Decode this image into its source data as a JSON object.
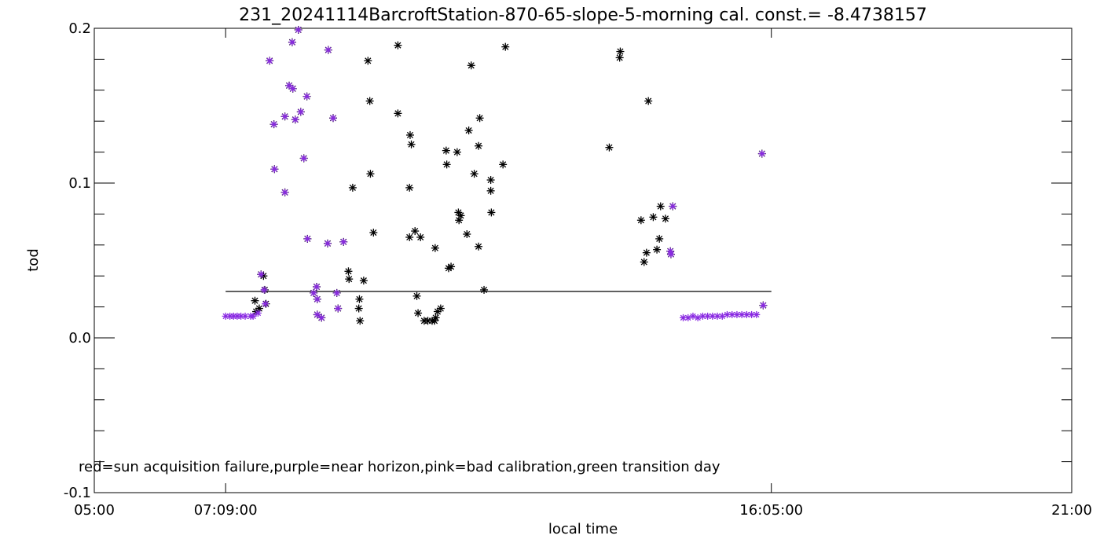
{
  "chart_data": {
    "type": "scatter",
    "title": "231_20241114BarcroftStation-870-65-slope-5-morning cal. const.= -8.4738157",
    "xlabel": "local time",
    "ylabel": "tod",
    "xlim_hours": [
      5,
      21
    ],
    "ylim": [
      -0.1,
      0.2
    ],
    "x_tick_labels": [
      {
        "hour": 5,
        "label": "05:00"
      },
      {
        "hour": 7.15,
        "label": "07:09:00"
      },
      {
        "hour": 16.0833,
        "label": "16:05:00"
      },
      {
        "hour": 21,
        "label": "21:00"
      }
    ],
    "y_tick_labels": [
      {
        "value": -0.1,
        "label": "-0.1"
      },
      {
        "value": 0.0,
        "label": "0.0"
      },
      {
        "value": 0.1,
        "label": "0.1"
      },
      {
        "value": 0.2,
        "label": "0.2"
      }
    ],
    "threshold_line": {
      "y": 0.03,
      "x_from_hours": 7.15,
      "x_to_hours": 16.0833
    },
    "annotation": "red=sun acquisition failure,purple=near horizon,pink=bad calibration,green transition day",
    "colors": {
      "normal": "#000000",
      "near_horizon": "#8a2be2",
      "axes": "#000000"
    },
    "series": [
      {
        "marker": "asterisk",
        "points": [
          [
            7.73,
            0.041
          ],
          [
            7.77,
            0.04
          ],
          [
            7.79,
            0.031
          ],
          [
            7.81,
            0.022
          ],
          [
            7.7,
            0.019
          ],
          [
            7.65,
            0.017
          ],
          [
            7.63,
            0.024
          ],
          [
            7.87,
            0.179
          ],
          [
            7.94,
            0.138
          ],
          [
            7.95,
            0.109
          ],
          [
            8.12,
            0.094
          ],
          [
            8.12,
            0.143
          ],
          [
            8.19,
            0.163
          ],
          [
            8.25,
            0.161
          ],
          [
            8.24,
            0.191
          ],
          [
            8.34,
            0.199
          ],
          [
            8.29,
            0.141
          ],
          [
            8.38,
            0.146
          ],
          [
            8.43,
            0.116
          ],
          [
            8.48,
            0.156
          ],
          [
            8.49,
            0.064
          ],
          [
            8.59,
            0.029
          ],
          [
            8.64,
            0.033
          ],
          [
            8.65,
            0.025
          ],
          [
            8.65,
            0.015
          ],
          [
            8.72,
            0.013
          ],
          [
            8.83,
            0.186
          ],
          [
            8.82,
            0.061
          ],
          [
            8.91,
            0.142
          ],
          [
            8.97,
            0.029
          ],
          [
            8.99,
            0.019
          ],
          [
            9.08,
            0.062
          ],
          [
            9.48,
            0.179
          ],
          [
            9.16,
            0.043
          ],
          [
            9.17,
            0.038
          ],
          [
            9.23,
            0.097
          ],
          [
            9.34,
            0.025
          ],
          [
            9.33,
            0.019
          ],
          [
            9.35,
            0.011
          ],
          [
            9.41,
            0.037
          ],
          [
            9.51,
            0.153
          ],
          [
            9.52,
            0.106
          ],
          [
            9.57,
            0.068
          ],
          [
            9.97,
            0.189
          ],
          [
            9.97,
            0.145
          ],
          [
            10.17,
            0.131
          ],
          [
            10.19,
            0.125
          ],
          [
            10.16,
            0.097
          ],
          [
            10.16,
            0.065
          ],
          [
            10.25,
            0.069
          ],
          [
            10.34,
            0.065
          ],
          [
            10.28,
            0.027
          ],
          [
            10.3,
            0.016
          ],
          [
            10.4,
            0.011
          ],
          [
            10.46,
            0.011
          ],
          [
            10.53,
            0.011
          ],
          [
            10.57,
            0.011
          ],
          [
            10.59,
            0.013
          ],
          [
            10.62,
            0.017
          ],
          [
            10.67,
            0.019
          ],
          [
            10.58,
            0.058
          ],
          [
            10.76,
            0.121
          ],
          [
            10.77,
            0.112
          ],
          [
            10.8,
            0.045
          ],
          [
            10.84,
            0.046
          ],
          [
            10.94,
            0.12
          ],
          [
            10.96,
            0.081
          ],
          [
            10.97,
            0.076
          ],
          [
            11.0,
            0.079
          ],
          [
            11.1,
            0.067
          ],
          [
            11.13,
            0.134
          ],
          [
            11.17,
            0.176
          ],
          [
            11.22,
            0.106
          ],
          [
            11.29,
            0.124
          ],
          [
            11.31,
            0.142
          ],
          [
            11.29,
            0.059
          ],
          [
            11.38,
            0.031
          ],
          [
            11.49,
            0.102
          ],
          [
            11.49,
            0.095
          ],
          [
            11.5,
            0.081
          ],
          [
            11.69,
            0.112
          ],
          [
            11.73,
            0.188
          ],
          [
            13.43,
            0.123
          ],
          [
            13.61,
            0.185
          ],
          [
            13.6,
            0.181
          ],
          [
            13.95,
            0.076
          ],
          [
            14.0,
            0.049
          ],
          [
            14.04,
            0.055
          ],
          [
            14.07,
            0.153
          ],
          [
            14.15,
            0.078
          ],
          [
            14.21,
            0.057
          ],
          [
            14.25,
            0.064
          ],
          [
            14.27,
            0.085
          ],
          [
            14.35,
            0.077
          ],
          [
            14.43,
            0.056
          ],
          [
            14.44,
            0.054
          ],
          [
            14.47,
            0.085
          ],
          [
            15.93,
            0.119
          ],
          [
            15.95,
            0.021
          ]
        ]
      },
      {
        "marker": "near-horizon asterisk",
        "points": [
          [
            7.15,
            0.014
          ],
          [
            7.22,
            0.014
          ],
          [
            7.28,
            0.014
          ],
          [
            7.34,
            0.014
          ],
          [
            7.4,
            0.014
          ],
          [
            7.47,
            0.014
          ],
          [
            7.56,
            0.014
          ],
          [
            7.6,
            0.014
          ],
          [
            7.68,
            0.016
          ],
          [
            7.73,
            0.041
          ],
          [
            7.78,
            0.031
          ],
          [
            7.8,
            0.022
          ],
          [
            7.87,
            0.179
          ],
          [
            7.94,
            0.138
          ],
          [
            7.95,
            0.109
          ],
          [
            8.12,
            0.094
          ],
          [
            8.12,
            0.143
          ],
          [
            8.19,
            0.163
          ],
          [
            8.24,
            0.191
          ],
          [
            8.25,
            0.161
          ],
          [
            8.29,
            0.141
          ],
          [
            8.34,
            0.199
          ],
          [
            8.38,
            0.146
          ],
          [
            8.43,
            0.116
          ],
          [
            8.48,
            0.156
          ],
          [
            8.49,
            0.064
          ],
          [
            8.59,
            0.029
          ],
          [
            8.64,
            0.033
          ],
          [
            8.65,
            0.025
          ],
          [
            8.65,
            0.015
          ],
          [
            8.72,
            0.013
          ],
          [
            8.82,
            0.061
          ],
          [
            8.83,
            0.186
          ],
          [
            8.91,
            0.142
          ],
          [
            8.97,
            0.029
          ],
          [
            8.99,
            0.019
          ],
          [
            9.08,
            0.062
          ],
          [
            14.43,
            0.056
          ],
          [
            14.44,
            0.054
          ],
          [
            14.47,
            0.085
          ],
          [
            14.64,
            0.013
          ],
          [
            14.72,
            0.013
          ],
          [
            14.8,
            0.014
          ],
          [
            14.88,
            0.013
          ],
          [
            14.96,
            0.014
          ],
          [
            15.04,
            0.014
          ],
          [
            15.12,
            0.014
          ],
          [
            15.2,
            0.014
          ],
          [
            15.28,
            0.014
          ],
          [
            15.36,
            0.015
          ],
          [
            15.44,
            0.015
          ],
          [
            15.52,
            0.015
          ],
          [
            15.6,
            0.015
          ],
          [
            15.68,
            0.015
          ],
          [
            15.76,
            0.015
          ],
          [
            15.84,
            0.015
          ],
          [
            15.93,
            0.119
          ],
          [
            15.95,
            0.021
          ]
        ]
      }
    ]
  }
}
